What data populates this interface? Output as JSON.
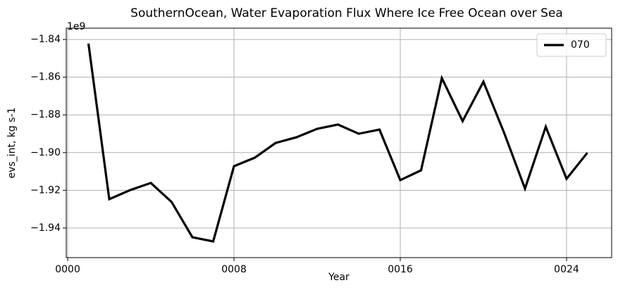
{
  "chart_data": {
    "type": "line",
    "title": "SouthernOcean, Water Evaporation Flux Where Ice Free Ocean over Sea",
    "y_label": "evs_int, kg s-1",
    "x_label": "Year",
    "y_offset_label": "1e9",
    "x": [
      1,
      2,
      3,
      4,
      5,
      6,
      7,
      8,
      9,
      10,
      11,
      12,
      13,
      14,
      15,
      16,
      17,
      18,
      19,
      20,
      21,
      22,
      23,
      24,
      25
    ],
    "series": [
      {
        "name": "070",
        "color": "#000000",
        "values": [
          -1.8422,
          -1.9247,
          -1.9199,
          -1.9161,
          -1.9262,
          -1.9449,
          -1.9471,
          -1.9072,
          -1.9027,
          -1.8949,
          -1.8919,
          -1.8874,
          -1.8851,
          -1.89,
          -1.8878,
          -1.9146,
          -1.9094,
          -1.8605,
          -1.8833,
          -1.8624,
          -1.8896,
          -1.9191,
          -1.8863,
          -1.9139,
          -1.9001
        ]
      }
    ],
    "xlim": [
      -0.07,
      26.17
    ],
    "ylim": [
      -1.9557,
      -1.834
    ],
    "xticks": [
      {
        "value": 0,
        "label": "0000"
      },
      {
        "value": 8,
        "label": "0008"
      },
      {
        "value": 16,
        "label": "0016"
      },
      {
        "value": 24,
        "label": "0024"
      }
    ],
    "yticks": [
      {
        "value": -1.84,
        "label": "−1.84"
      },
      {
        "value": -1.86,
        "label": "−1.86"
      },
      {
        "value": -1.88,
        "label": "−1.88"
      },
      {
        "value": -1.9,
        "label": "−1.90"
      },
      {
        "value": -1.92,
        "label": "−1.92"
      },
      {
        "value": -1.94,
        "label": "−1.94"
      }
    ],
    "grid": true,
    "legend": "upper right"
  }
}
